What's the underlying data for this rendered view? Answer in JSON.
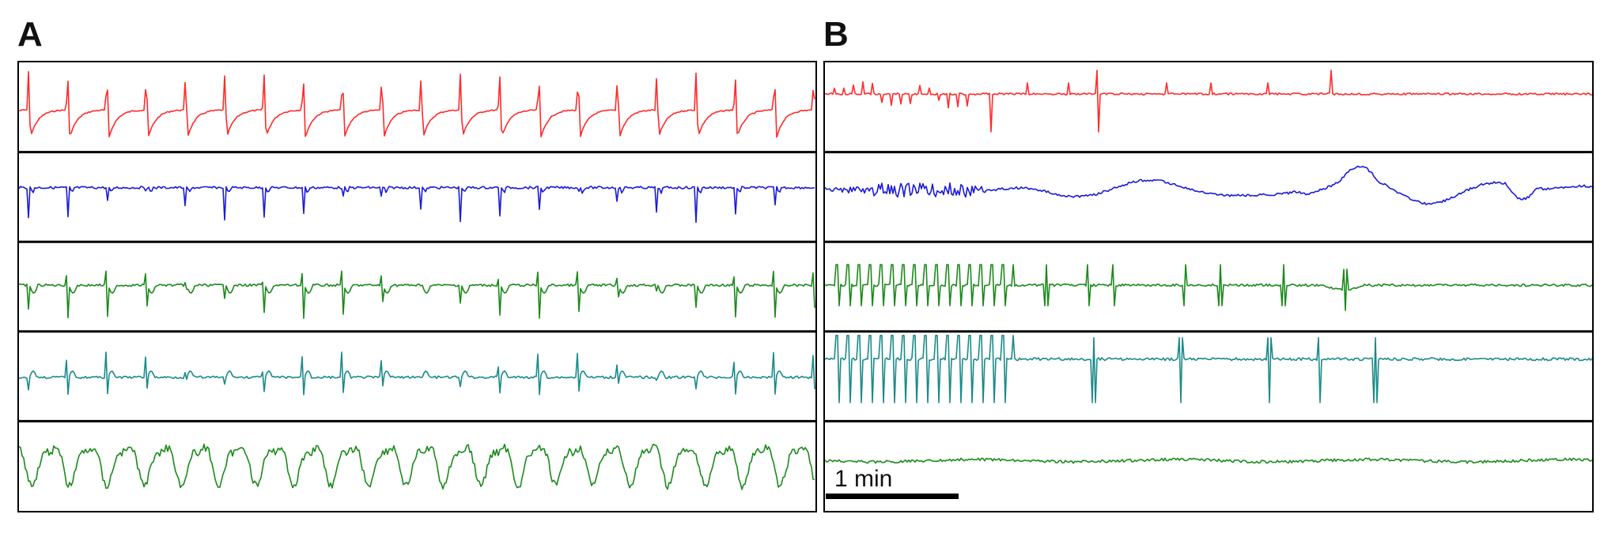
{
  "panels": [
    {
      "id": "A",
      "label": "A",
      "traces": [
        {
          "color": "#ff2a2a",
          "pattern": "spike-recovery",
          "beats": 20
        },
        {
          "color": "#1a1adb",
          "pattern": "down-spike",
          "beats": 20
        },
        {
          "color": "#1a8a1a",
          "pattern": "biphasic",
          "beats": 20
        },
        {
          "color": "#1a8a8a",
          "pattern": "up-complex",
          "beats": 20
        },
        {
          "color": "#1a8a1a",
          "pattern": "slow-wave",
          "beats": 21
        }
      ]
    },
    {
      "id": "B",
      "label": "B",
      "traces": [
        {
          "color": "#ff2a2a",
          "pattern": "sparse-spikes"
        },
        {
          "color": "#1a1adb",
          "pattern": "noisy-then-slow"
        },
        {
          "color": "#1a8a1a",
          "pattern": "burst-then-sparse"
        },
        {
          "color": "#1a8a8a",
          "pattern": "tall-burst-then-sparse"
        },
        {
          "color": "#1a8a1a",
          "pattern": "flat-noise"
        }
      ]
    }
  ],
  "scale_bar": {
    "label": "1 min"
  }
}
